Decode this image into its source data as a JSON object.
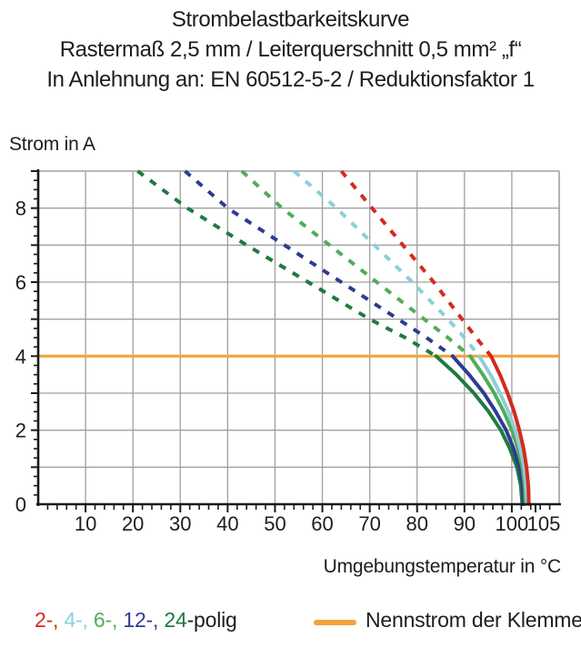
{
  "header": {
    "line1": "Strombelastbarkeitskurve",
    "line2": "Rastermaß 2,5 mm / Leiterquerschnitt 0,5 mm² „f“",
    "line3": "In Anlehnung an: EN 60512-5-2 / Reduktionsfaktor 1"
  },
  "chart_data": {
    "type": "line",
    "title": "Strombelastbarkeitskurve",
    "xlabel": "Umgebungstemperatur in °C",
    "ylabel": "Strom in A",
    "xlim": [
      0,
      110
    ],
    "ylim": [
      0,
      9
    ],
    "grid": true,
    "x_gridline_step": 10,
    "y_gridline_step": 1,
    "x_major_ticks": [
      10,
      20,
      30,
      40,
      50,
      60,
      70,
      80,
      90,
      100,
      105
    ],
    "x_minor_tick_step": 2,
    "y_labeled_ticks": [
      0,
      2,
      4,
      6,
      8
    ],
    "y_minor_tick_step": 0.25,
    "rated_current": {
      "label": "Nennstrom der Klemme",
      "value": 4,
      "color": "#F2A43C"
    },
    "series": [
      {
        "name": "24-polig",
        "color": "#1E7A42",
        "points_dashed": [
          [
            21,
            9
          ],
          [
            31.5,
            8
          ],
          [
            44,
            7
          ],
          [
            57,
            6
          ],
          [
            70,
            5
          ],
          [
            77.5,
            4.5
          ],
          [
            84,
            4
          ]
        ],
        "points_solid": [
          [
            84,
            4
          ],
          [
            88.3,
            3.5
          ],
          [
            92,
            3
          ],
          [
            95.1,
            2.5
          ],
          [
            97.7,
            2
          ],
          [
            99.6,
            1.5
          ],
          [
            101.1,
            1
          ],
          [
            101.9,
            0.5
          ],
          [
            102.2,
            0
          ]
        ]
      },
      {
        "name": "12-polig",
        "color": "#2F3B92",
        "points_dashed": [
          [
            31,
            9
          ],
          [
            40,
            8
          ],
          [
            52,
            7
          ],
          [
            64,
            6
          ],
          [
            76,
            5
          ],
          [
            82,
            4.5
          ],
          [
            87.5,
            4
          ]
        ],
        "points_solid": [
          [
            87.5,
            4
          ],
          [
            91,
            3.5
          ],
          [
            94.1,
            3
          ],
          [
            96.6,
            2.5
          ],
          [
            98.8,
            2
          ],
          [
            100.4,
            1.5
          ],
          [
            101.6,
            1
          ],
          [
            102.3,
            0.5
          ],
          [
            102.5,
            0
          ]
        ]
      },
      {
        "name": "6-polig",
        "color": "#52AC57",
        "points_dashed": [
          [
            43,
            9
          ],
          [
            51.5,
            8
          ],
          [
            61.5,
            7
          ],
          [
            71.5,
            6
          ],
          [
            81.5,
            5
          ],
          [
            86.5,
            4.5
          ],
          [
            91.2,
            4
          ]
        ],
        "points_solid": [
          [
            91.2,
            4
          ],
          [
            93.9,
            3.5
          ],
          [
            96.3,
            3
          ],
          [
            98.3,
            2.5
          ],
          [
            100,
            2
          ],
          [
            101.3,
            1.5
          ],
          [
            102.2,
            1
          ],
          [
            102.7,
            0.5
          ],
          [
            102.9,
            0
          ]
        ]
      },
      {
        "name": "4-polig",
        "color": "#8CCFDA",
        "points_dashed": [
          [
            54,
            9
          ],
          [
            63,
            8
          ],
          [
            71,
            7
          ],
          [
            79,
            6
          ],
          [
            86.5,
            5
          ],
          [
            90,
            4.5
          ],
          [
            93.1,
            4
          ]
        ],
        "points_solid": [
          [
            93.1,
            4
          ],
          [
            95.5,
            3.5
          ],
          [
            97.5,
            3
          ],
          [
            99.3,
            2.5
          ],
          [
            100.7,
            2
          ],
          [
            101.8,
            1.5
          ],
          [
            102.6,
            1
          ],
          [
            103,
            0.5
          ],
          [
            103.2,
            0
          ]
        ]
      },
      {
        "name": "2-polig",
        "color": "#D32B1E",
        "points_dashed": [
          [
            64,
            9
          ],
          [
            70.5,
            8
          ],
          [
            77,
            7
          ],
          [
            83.5,
            6
          ],
          [
            89.5,
            5
          ],
          [
            92.5,
            4.5
          ],
          [
            95.6,
            4
          ]
        ],
        "points_solid": [
          [
            95.6,
            4
          ],
          [
            97.5,
            3.5
          ],
          [
            99.1,
            3
          ],
          [
            100.5,
            2.5
          ],
          [
            101.6,
            2
          ],
          [
            102.5,
            1.5
          ],
          [
            103.1,
            1
          ],
          [
            103.5,
            0.5
          ],
          [
            103.6,
            0
          ]
        ]
      }
    ]
  },
  "legend": {
    "pole_segments": [
      {
        "text": "2-,",
        "color": "#D32B1E"
      },
      {
        "text": " ",
        "color": "#1d1d1b"
      },
      {
        "text": "4-,",
        "color": "#8CCFDA"
      },
      {
        "text": " ",
        "color": "#1d1d1b"
      },
      {
        "text": "6-,",
        "color": "#52AC57"
      },
      {
        "text": " ",
        "color": "#1d1d1b"
      },
      {
        "text": "12-,",
        "color": "#2F3B92"
      },
      {
        "text": " ",
        "color": "#1d1d1b"
      },
      {
        "text": "24",
        "color": "#1E7A42"
      },
      {
        "text": "-polig",
        "color": "#1d1d1b"
      }
    ]
  },
  "colors": {
    "grid": "#A0A0A0",
    "axis": "#1a1a1a",
    "text": "#1d1d1b"
  }
}
